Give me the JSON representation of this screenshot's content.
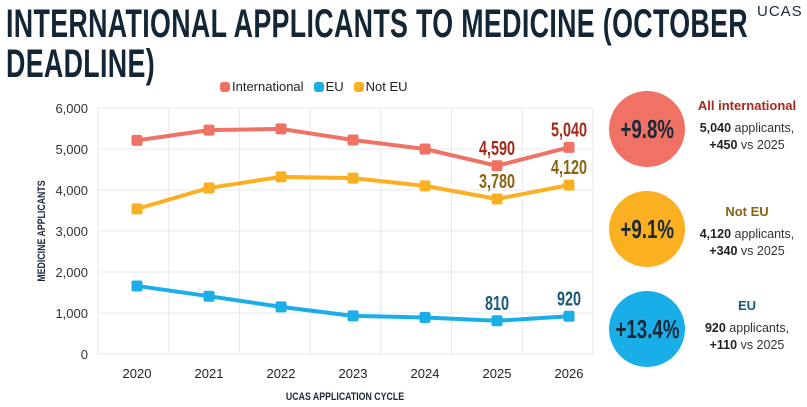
{
  "title": "INTERNATIONAL APPLICANTS TO MEDICINE (OCTOBER DEADLINE)",
  "logo": "UCAS",
  "colors": {
    "International": "#f07264",
    "EU": "#1aaee8",
    "Not EU": "#fbb021",
    "title": "#142636"
  },
  "chart_data": {
    "type": "line",
    "xlabel": "UCAS APPLICATION CYCLE",
    "ylabel": "MEDICINE APPLICANTS",
    "ylim": [
      0,
      6000
    ],
    "yticks": [
      "0",
      "1,000",
      "2,000",
      "3,000",
      "4,000",
      "5,000",
      "6,000"
    ],
    "grid": true,
    "legend": "top-center",
    "categories": [
      "2020",
      "2021",
      "2022",
      "2023",
      "2024",
      "2025",
      "2026"
    ],
    "series": [
      {
        "name": "International",
        "values": [
          5210,
          5460,
          5490,
          5220,
          5000,
          4590,
          5040
        ],
        "labels": {
          "5": "4,590",
          "6": "5,040"
        },
        "label_color": "#a52a1c"
      },
      {
        "name": "EU",
        "values": [
          1660,
          1410,
          1150,
          930,
          890,
          810,
          920
        ],
        "labels": {
          "5": "810",
          "6": "920"
        },
        "label_color": "#1a5a78"
      },
      {
        "name": "Not EU",
        "values": [
          3540,
          4050,
          4320,
          4290,
          4100,
          3780,
          4120
        ],
        "labels": {
          "5": "3,780",
          "6": "4,120"
        },
        "label_color": "#8a6410"
      }
    ]
  },
  "summary": [
    {
      "pct": "+9.8%",
      "heading": "All international",
      "count": "5,040",
      "count_suffix": " applicants,",
      "change": "+450",
      "change_suffix": " vs 2025",
      "color": "#f07264",
      "heading_color": "#a52a1c"
    },
    {
      "pct": "+9.1%",
      "heading": "Not EU",
      "count": "4,120",
      "count_suffix": " applicants,",
      "change": "+340",
      "change_suffix": " vs 2025",
      "color": "#fbb021",
      "heading_color": "#8a6410"
    },
    {
      "pct": "+13.4%",
      "heading": "EU",
      "count": "920",
      "count_suffix": " applicants,",
      "change": "+110",
      "change_suffix": " vs 2025",
      "color": "#1aaee8",
      "heading_color": "#1a5a78"
    }
  ]
}
